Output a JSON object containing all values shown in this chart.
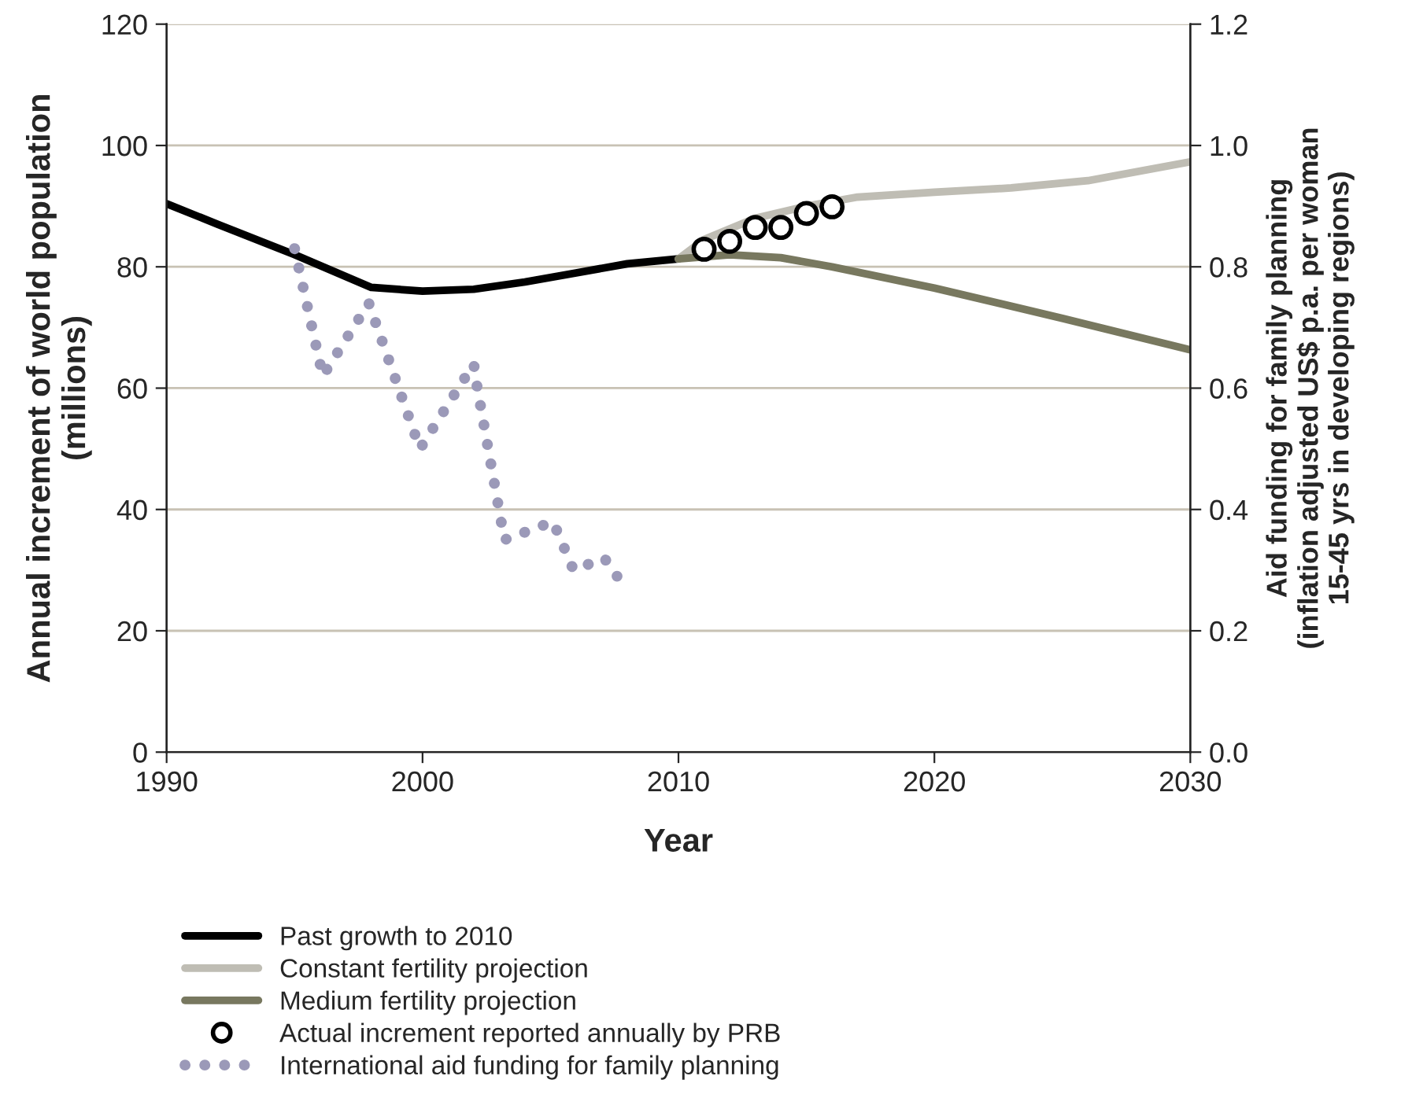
{
  "chart_data": {
    "type": "line",
    "xlabel": "Year",
    "ylabel": "Annual increment of world population\n(millions)",
    "y2label": "Aid funding for family planning\n(inflation adjusted US$ p.a. per woman\n15-45 yrs in developing regions)",
    "xlim": [
      1990,
      2030
    ],
    "xticks": [
      1990,
      2000,
      2010,
      2020,
      2030
    ],
    "ylim": [
      0,
      120
    ],
    "yticks": [
      0,
      20,
      40,
      60,
      80,
      100,
      120
    ],
    "y2lim": [
      0,
      1.2
    ],
    "y2ticks": [
      {
        "value": 0,
        "label": "0.0"
      },
      0.2,
      0.4,
      0.6,
      0.8,
      {
        "value": 1,
        "label": "1.0"
      },
      1.2
    ],
    "grid": "y",
    "legend": "bottom",
    "series": [
      {
        "name": "Past growth to 2010",
        "color": "#000000",
        "line_style": "solid",
        "marker": "none",
        "x": [
          1990,
          1992,
          1995,
          1998,
          2000,
          2002,
          2004,
          2006,
          2008,
          2010
        ],
        "values": [
          90.4,
          87,
          82,
          76.6,
          76.0,
          76.3,
          77.5,
          79,
          80.5,
          81.3
        ]
      },
      {
        "name": "Constant fertility projection",
        "color": "#bfbdb4",
        "line_style": "solid",
        "marker": "none",
        "x": [
          2010,
          2011,
          2013,
          2015,
          2017,
          2020,
          2023,
          2026,
          2030
        ],
        "values": [
          81.3,
          84.5,
          88,
          90,
          91.5,
          92.3,
          93,
          94.2,
          97.3
        ]
      },
      {
        "name": "Medium fertility projection",
        "color": "#78785f",
        "line_style": "solid",
        "marker": "none",
        "x": [
          2010,
          2012,
          2014,
          2016,
          2020,
          2025,
          2030
        ],
        "values": [
          81.3,
          82,
          81.5,
          80,
          76.5,
          71.5,
          66.3
        ]
      },
      {
        "name": "Actual increment reported annually by PRB",
        "type": "scatter",
        "color": "#000000",
        "marker": "circle",
        "x": [
          2011,
          2012,
          2013,
          2014,
          2015,
          2016
        ],
        "values": [
          82.9,
          84.2,
          86.5,
          86.5,
          88.8,
          89.9
        ]
      },
      {
        "name": "International aid funding for family planning",
        "axis": "y2",
        "color": "#9b99b8",
        "line_style": "dotted",
        "marker": "none",
        "x": [
          1995.0,
          1996.1,
          1997.9,
          1999.9,
          2002.0,
          2002.1,
          2003.2,
          2005.1,
          2005.9,
          2007.1,
          2007.6
        ],
        "values": [
          0.83,
          0.62,
          0.74,
          0.5,
          0.64,
          0.61,
          0.35,
          0.38,
          0.3,
          0.32,
          0.29
        ]
      }
    ]
  }
}
